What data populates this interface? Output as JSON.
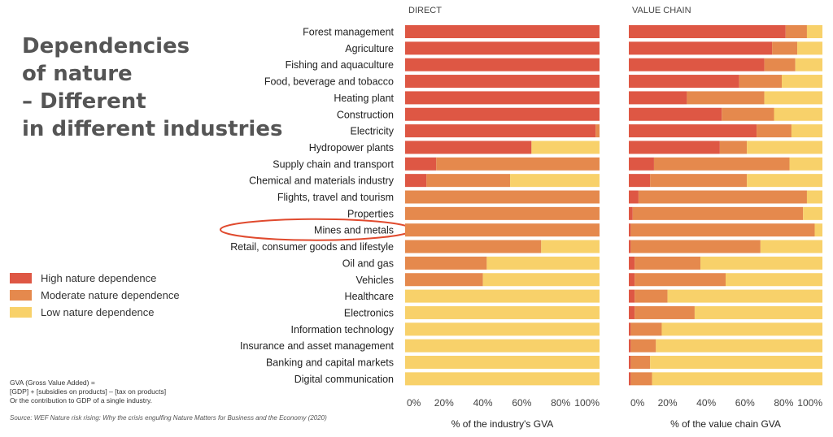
{
  "title_lines": [
    "Dependencies",
    "of nature",
    "– Different",
    "in different industries"
  ],
  "legend": [
    {
      "label": "High nature dependence",
      "color": "#de5744"
    },
    {
      "label": "Moderate nature dependence",
      "color": "#e5894d"
    },
    {
      "label": "Low nature dependence",
      "color": "#f8d16a"
    }
  ],
  "note_lines": [
    "GVA (Gross Value Added)  =",
    "[GDP] + [subsidies on products] – [tax on products]",
    "Or the contribution to GDP of a single industry."
  ],
  "source": "Source: WEF Nature risk rising: Why the crisis engulfing Nature Matters for Business and the Economy (2020)",
  "highlight_color": "#e04a2e",
  "chart_data": {
    "type": "bar",
    "stacked": true,
    "orientation": "horizontal",
    "categories": [
      "Forest management",
      "Agriculture",
      "Fishing and aquaculture",
      "Food, beverage and tobacco",
      "Heating plant",
      "Construction",
      "Electricity",
      "Hydropower plants",
      "Supply chain and transport",
      "Chemical and materials industry",
      "Flights, travel and tourism",
      "Properties",
      "Mines and metals",
      "Retail, consumer goods and lifestyle",
      "Oil and gas",
      "Vehicles",
      "Healthcare",
      "Electronics",
      "Information technology",
      "Insurance and asset management",
      "Banking and capital markets",
      "Digital communication"
    ],
    "highlighted_category": "Mines and metals",
    "xlim": [
      0,
      100
    ],
    "xticks": [
      "0%",
      "20%",
      "40%",
      "60%",
      "80%",
      "100%"
    ],
    "panels": [
      {
        "title": "DIRECT",
        "xlabel": "% of the industry's GVA",
        "series": [
          {
            "name": "High nature dependence",
            "values": [
              100,
              100,
              100,
              100,
              100,
              100,
              98,
              65,
              16,
              11,
              0,
              0,
              0,
              0,
              0,
              0,
              0,
              0,
              0,
              0,
              0,
              0
            ]
          },
          {
            "name": "Moderate nature dependence",
            "values": [
              0,
              0,
              0,
              0,
              0,
              0,
              2,
              0,
              84,
              43,
              100,
              100,
              100,
              70,
              42,
              40,
              0,
              0,
              0,
              0,
              0,
              0
            ]
          },
          {
            "name": "Low nature dependence",
            "values": [
              0,
              0,
              0,
              0,
              0,
              0,
              0,
              35,
              0,
              46,
              0,
              0,
              0,
              30,
              58,
              60,
              100,
              100,
              100,
              100,
              100,
              100
            ]
          }
        ]
      },
      {
        "title": "VALUE CHAIN",
        "xlabel": "% of the value chain GVA",
        "series": [
          {
            "name": "High nature dependence",
            "values": [
              81,
              74,
              70,
              57,
              30,
              48,
              66,
              47,
              13,
              11,
              5,
              2,
              1,
              1,
              3,
              3,
              3,
              3,
              1,
              1,
              1,
              1
            ]
          },
          {
            "name": "Moderate nature dependence",
            "values": [
              11,
              13,
              16,
              22,
              40,
              27,
              18,
              14,
              70,
              50,
              87,
              88,
              95,
              67,
              34,
              47,
              17,
              31,
              16,
              13,
              10,
              11
            ]
          },
          {
            "name": "Low nature dependence",
            "values": [
              8,
              13,
              14,
              21,
              30,
              25,
              16,
              39,
              17,
              39,
              8,
              10,
              4,
              32,
              63,
              50,
              80,
              66,
              83,
              86,
              89,
              88
            ]
          }
        ]
      }
    ]
  }
}
